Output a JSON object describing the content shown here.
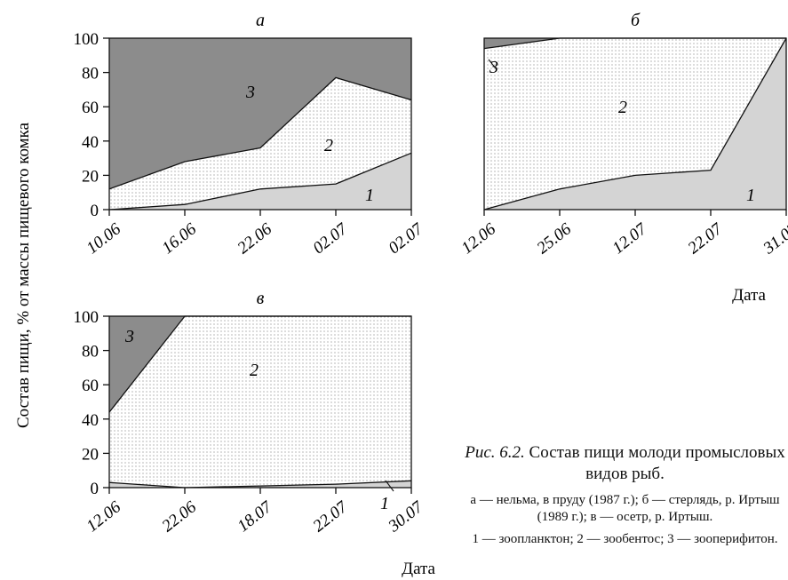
{
  "figure": {
    "ylabel": "Состав пищи, % от массы пищевого комка",
    "xlabel": "Дата",
    "fig_label": "Рис. 6.2.",
    "caption_text": "Состав пищи молоди промысловых видов рыб.",
    "caption_species": "а — нельма, в пруду (1987 г.); б — стерлядь, р. Иртыш (1989 г.); в — осетр, р. Иртыш.",
    "caption_legend": "1 — зоопланктон; 2 — зообентос; 3 — зооперифитон.",
    "colors": {
      "zooplankton": "#d4d4d4",
      "zoobenthos": "#ffffff",
      "zooperiphyton": "#8c8c8c"
    }
  },
  "chart_data": [
    {
      "type": "area",
      "panel": "а",
      "categories": [
        "10.06",
        "16.06",
        "22.06",
        "02.07",
        "02.07"
      ],
      "ylim": [
        0,
        100
      ],
      "yticks": [
        "0",
        "20",
        "40",
        "60",
        "80",
        "100"
      ],
      "series": [
        {
          "name": "1",
          "values": [
            0,
            3,
            12,
            15,
            33
          ]
        },
        {
          "name": "2",
          "values": [
            12,
            25,
            24,
            62,
            31
          ]
        },
        {
          "name": "3",
          "values": [
            88,
            72,
            64,
            23,
            36
          ]
        }
      ]
    },
    {
      "type": "area",
      "panel": "б",
      "categories": [
        "12.06",
        "25.06",
        "12.07",
        "22.07",
        "31.07"
      ],
      "ylim": [
        0,
        100
      ],
      "yticks": [],
      "series": [
        {
          "name": "1",
          "values": [
            0,
            12,
            20,
            23,
            100
          ]
        },
        {
          "name": "2",
          "values": [
            94,
            88,
            80,
            77,
            0
          ]
        },
        {
          "name": "3",
          "values": [
            6,
            0,
            0,
            0,
            0
          ]
        }
      ]
    },
    {
      "type": "area",
      "panel": "в",
      "categories": [
        "12.06",
        "22.06",
        "18.07",
        "22.07",
        "30.07"
      ],
      "ylim": [
        0,
        100
      ],
      "yticks": [
        "0",
        "20",
        "40",
        "60",
        "80",
        "100"
      ],
      "series": [
        {
          "name": "1",
          "values": [
            3,
            0,
            1,
            2,
            4
          ]
        },
        {
          "name": "2",
          "values": [
            41,
            100,
            99,
            98,
            96
          ]
        },
        {
          "name": "3",
          "values": [
            56,
            0,
            0,
            0,
            0
          ]
        }
      ]
    }
  ]
}
